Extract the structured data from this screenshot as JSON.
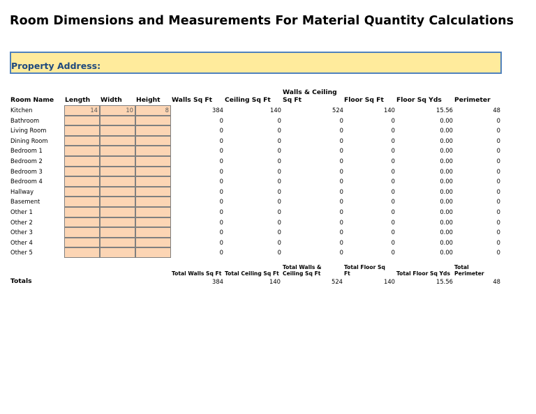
{
  "title": "Room Dimensions and Measurements For Material Quantity Calculations",
  "property_address_label": "Property Address:",
  "headers": {
    "room_name": "Room Name",
    "length": "Length",
    "width": "Width",
    "height": "Height",
    "walls": "Walls Sq Ft",
    "ceiling": "Ceiling Sq Ft",
    "walls_ceiling_1": "Walls & Ceiling",
    "walls_ceiling_2": "Sq Ft",
    "floor": "Floor Sq Ft",
    "floor_yds": "Floor Sq Yds",
    "perimeter": "Perimeter"
  },
  "rows": [
    {
      "name": "Kitchen",
      "length": "14",
      "width": "10",
      "height": "8",
      "walls": "384",
      "ceiling": "140",
      "wc": "524",
      "floor": "140",
      "yds": "15.56",
      "perim": "48"
    },
    {
      "name": "Bathroom",
      "length": "",
      "width": "",
      "height": "",
      "walls": "0",
      "ceiling": "0",
      "wc": "0",
      "floor": "0",
      "yds": "0.00",
      "perim": "0"
    },
    {
      "name": "Living Room",
      "length": "",
      "width": "",
      "height": "",
      "walls": "0",
      "ceiling": "0",
      "wc": "0",
      "floor": "0",
      "yds": "0.00",
      "perim": "0"
    },
    {
      "name": "Dining Room",
      "length": "",
      "width": "",
      "height": "",
      "walls": "0",
      "ceiling": "0",
      "wc": "0",
      "floor": "0",
      "yds": "0.00",
      "perim": "0"
    },
    {
      "name": "Bedroom 1",
      "length": "",
      "width": "",
      "height": "",
      "walls": "0",
      "ceiling": "0",
      "wc": "0",
      "floor": "0",
      "yds": "0.00",
      "perim": "0"
    },
    {
      "name": "Bedroom 2",
      "length": "",
      "width": "",
      "height": "",
      "walls": "0",
      "ceiling": "0",
      "wc": "0",
      "floor": "0",
      "yds": "0.00",
      "perim": "0"
    },
    {
      "name": "Bedroom 3",
      "length": "",
      "width": "",
      "height": "",
      "walls": "0",
      "ceiling": "0",
      "wc": "0",
      "floor": "0",
      "yds": "0.00",
      "perim": "0"
    },
    {
      "name": "Bedroom 4",
      "length": "",
      "width": "",
      "height": "",
      "walls": "0",
      "ceiling": "0",
      "wc": "0",
      "floor": "0",
      "yds": "0.00",
      "perim": "0"
    },
    {
      "name": "Hallway",
      "length": "",
      "width": "",
      "height": "",
      "walls": "0",
      "ceiling": "0",
      "wc": "0",
      "floor": "0",
      "yds": "0.00",
      "perim": "0"
    },
    {
      "name": "Basement",
      "length": "",
      "width": "",
      "height": "",
      "walls": "0",
      "ceiling": "0",
      "wc": "0",
      "floor": "0",
      "yds": "0.00",
      "perim": "0"
    },
    {
      "name": "Other 1",
      "length": "",
      "width": "",
      "height": "",
      "walls": "0",
      "ceiling": "0",
      "wc": "0",
      "floor": "0",
      "yds": "0.00",
      "perim": "0"
    },
    {
      "name": "Other 2",
      "length": "",
      "width": "",
      "height": "",
      "walls": "0",
      "ceiling": "0",
      "wc": "0",
      "floor": "0",
      "yds": "0.00",
      "perim": "0"
    },
    {
      "name": "Other 3",
      "length": "",
      "width": "",
      "height": "",
      "walls": "0",
      "ceiling": "0",
      "wc": "0",
      "floor": "0",
      "yds": "0.00",
      "perim": "0"
    },
    {
      "name": "Other 4",
      "length": "",
      "width": "",
      "height": "",
      "walls": "0",
      "ceiling": "0",
      "wc": "0",
      "floor": "0",
      "yds": "0.00",
      "perim": "0"
    },
    {
      "name": "Other 5",
      "length": "",
      "width": "",
      "height": "",
      "walls": "0",
      "ceiling": "0",
      "wc": "0",
      "floor": "0",
      "yds": "0.00",
      "perim": "0"
    }
  ],
  "totals": {
    "label": "Totals",
    "walls_h": "Total Walls Sq Ft",
    "ceiling_h": "Total Ceiling Sq Ft",
    "wc_h1": "Total Walls &",
    "wc_h2": "Ceiling Sq Ft",
    "floor_h1": "Total Floor Sq",
    "floor_h2": "Ft",
    "yds_h": "Total Floor Sq Yds",
    "perim_h1": "Total",
    "perim_h2": "Perimeter",
    "walls": "384",
    "ceiling": "140",
    "wc": "524",
    "floor": "140",
    "yds": "15.56",
    "perim": "48"
  }
}
